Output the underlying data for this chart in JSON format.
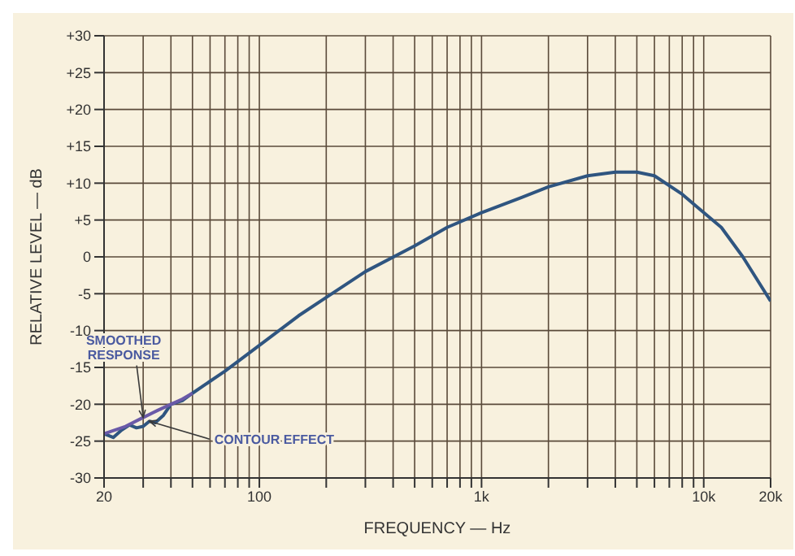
{
  "chart_data": {
    "type": "line",
    "xlabel": "FREQUENCY — Hz",
    "ylabel": "RELATIVE LEVEL — dB",
    "log": "x",
    "grid": true,
    "marker": "none",
    "line_style": "solid",
    "xlim": [
      20,
      20000
    ],
    "xticks": [
      {
        "value": 20,
        "label": "20"
      },
      {
        "value": 30,
        "label": null
      },
      {
        "value": 40,
        "label": null
      },
      {
        "value": 50,
        "label": null
      },
      {
        "value": 60,
        "label": null
      },
      {
        "value": 70,
        "label": null
      },
      {
        "value": 80,
        "label": null
      },
      {
        "value": 90,
        "label": null
      },
      {
        "value": 100,
        "label": "100"
      },
      {
        "value": 200,
        "label": null
      },
      {
        "value": 300,
        "label": null
      },
      {
        "value": 400,
        "label": null
      },
      {
        "value": 500,
        "label": null
      },
      {
        "value": 600,
        "label": null
      },
      {
        "value": 700,
        "label": null
      },
      {
        "value": 800,
        "label": null
      },
      {
        "value": 900,
        "label": null
      },
      {
        "value": 1000,
        "label": "1k"
      },
      {
        "value": 2000,
        "label": null
      },
      {
        "value": 3000,
        "label": null
      },
      {
        "value": 4000,
        "label": null
      },
      {
        "value": 5000,
        "label": null
      },
      {
        "value": 6000,
        "label": null
      },
      {
        "value": 7000,
        "label": null
      },
      {
        "value": 8000,
        "label": null
      },
      {
        "value": 9000,
        "label": null
      },
      {
        "value": 10000,
        "label": "10k"
      },
      {
        "value": 20000,
        "label": "20k"
      }
    ],
    "ylim": [
      -30,
      30
    ],
    "yticks": [
      {
        "value": -30,
        "label": "-30"
      },
      {
        "value": -25,
        "label": "-25"
      },
      {
        "value": -20,
        "label": "-20"
      },
      {
        "value": -15,
        "label": "-15"
      },
      {
        "value": -10,
        "label": "-10"
      },
      {
        "value": -5,
        "label": "-5"
      },
      {
        "value": 0,
        "label": "0"
      },
      {
        "value": 5,
        "label": "+5"
      },
      {
        "value": 10,
        "label": "+10"
      },
      {
        "value": 15,
        "label": "+15"
      },
      {
        "value": 20,
        "label": "+20"
      },
      {
        "value": 25,
        "label": "+25"
      },
      {
        "value": 30,
        "label": "+30"
      }
    ],
    "series": [
      {
        "color": "#2f5580",
        "x": [
          20,
          22,
          24,
          26,
          28,
          30,
          32,
          34,
          37,
          40,
          45,
          50,
          70,
          100,
          150,
          200,
          300,
          500,
          700,
          1000,
          1500,
          2000,
          3000,
          4000,
          5000,
          6000,
          8000,
          10000,
          12000,
          15000,
          20000
        ],
        "values": [
          -24,
          -24.5,
          -23.5,
          -22.8,
          -23.2,
          -23,
          -22.3,
          -22.5,
          -21.5,
          -20,
          -19.5,
          -18.5,
          -15.5,
          -12,
          -8,
          -5.5,
          -2,
          1.5,
          4,
          6,
          8,
          9.5,
          11,
          11.5,
          11.5,
          11,
          8.5,
          6,
          4,
          0,
          -6
        ]
      },
      {
        "color": "#6a5aa8",
        "x": [
          20,
          25,
          30,
          35,
          40,
          45,
          50
        ],
        "values": [
          -24,
          -23,
          -21.8,
          -20.8,
          -20,
          -19.3,
          -18.5
        ]
      }
    ],
    "annotations": [
      {
        "text": "SMOOTHED RESPONSE",
        "x": 30,
        "y": -21.8
      },
      {
        "text": "CONTOUR EFFECT",
        "x": 32,
        "y": -22.3
      }
    ]
  }
}
